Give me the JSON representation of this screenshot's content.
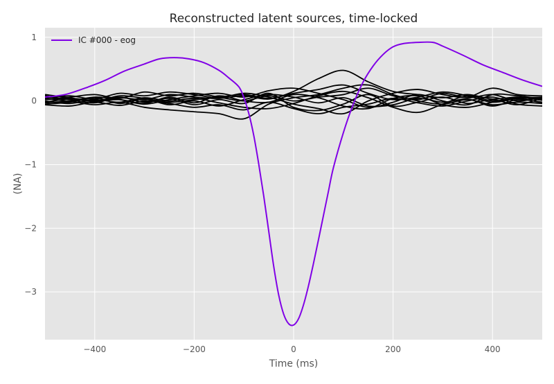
{
  "chart_data": {
    "type": "line",
    "title": "Reconstructed latent sources, time-locked",
    "xlabel": "Time (ms)",
    "ylabel": "(NA)",
    "xlim": [
      -500,
      500
    ],
    "ylim": [
      -3.75,
      1.15
    ],
    "xticks": [
      -400,
      -200,
      0,
      200,
      400
    ],
    "xtick_labels": [
      "−400",
      "−200",
      "0",
      "200",
      "400"
    ],
    "yticks": [
      1,
      0,
      -1,
      -2,
      -3
    ],
    "ytick_labels": [
      "1",
      "0",
      "−1",
      "−2",
      "−3"
    ],
    "grid": true,
    "legend_position": "top-left",
    "background_color": "#e5e5e5",
    "series": [
      {
        "name": "IC #000 - eog",
        "color": "#8000e6",
        "highlight": true,
        "x": [
          -500,
          -460,
          -420,
          -380,
          -340,
          -300,
          -270,
          -240,
          -210,
          -180,
          -150,
          -130,
          -110,
          -100,
          -90,
          -80,
          -70,
          -60,
          -50,
          -40,
          -30,
          -20,
          -10,
          0,
          10,
          20,
          30,
          40,
          50,
          60,
          70,
          80,
          100,
          120,
          140,
          160,
          180,
          200,
          220,
          250,
          280,
          300,
          340,
          380,
          420,
          460,
          500
        ],
        "y": [
          0.06,
          0.1,
          0.2,
          0.32,
          0.47,
          0.58,
          0.66,
          0.68,
          0.66,
          0.6,
          0.48,
          0.36,
          0.22,
          0.05,
          -0.2,
          -0.55,
          -1.0,
          -1.5,
          -2.05,
          -2.6,
          -3.05,
          -3.35,
          -3.5,
          -3.52,
          -3.42,
          -3.2,
          -2.9,
          -2.55,
          -2.18,
          -1.8,
          -1.42,
          -1.05,
          -0.5,
          -0.05,
          0.3,
          0.55,
          0.73,
          0.85,
          0.9,
          0.92,
          0.92,
          0.86,
          0.72,
          0.57,
          0.45,
          0.33,
          0.23
        ]
      },
      {
        "name": "",
        "color": "#000000",
        "x": [
          -500,
          -450,
          -400,
          -350,
          -300,
          -250,
          -200,
          -150,
          -100,
          -50,
          0,
          50,
          100,
          150,
          200,
          250,
          300,
          350,
          400,
          450,
          500
        ],
        "y": [
          0.02,
          0.04,
          0.01,
          0.05,
          0.02,
          0.1,
          0.06,
          0.04,
          0.08,
          0.03,
          0.15,
          0.35,
          0.48,
          0.3,
          0.15,
          0.1,
          0.05,
          0.1,
          0.03,
          0.06,
          0.02
        ]
      },
      {
        "name": "",
        "color": "#000000",
        "x": [
          -500,
          -450,
          -400,
          -350,
          -300,
          -250,
          -200,
          -150,
          -100,
          -50,
          0,
          50,
          100,
          150,
          200,
          250,
          300,
          350,
          400,
          450,
          500
        ],
        "y": [
          -0.03,
          -0.01,
          -0.06,
          -0.02,
          -0.1,
          -0.14,
          -0.17,
          -0.2,
          -0.28,
          -0.05,
          0.05,
          0.1,
          0.2,
          0.25,
          0.1,
          0.0,
          -0.05,
          0.02,
          -0.06,
          -0.02,
          -0.04
        ]
      },
      {
        "name": "",
        "color": "#000000",
        "x": [
          -500,
          -450,
          -400,
          -350,
          -300,
          -250,
          -200,
          -150,
          -100,
          -50,
          0,
          50,
          100,
          150,
          200,
          250,
          300,
          350,
          400,
          450,
          500
        ],
        "y": [
          0.05,
          0.08,
          0.03,
          0.12,
          0.08,
          0.14,
          0.1,
          0.05,
          0.12,
          0.06,
          -0.05,
          -0.12,
          -0.2,
          0.0,
          0.12,
          0.18,
          0.1,
          0.06,
          0.2,
          0.1,
          0.08
        ]
      },
      {
        "name": "",
        "color": "#000000",
        "x": [
          -500,
          -450,
          -400,
          -350,
          -300,
          -250,
          -200,
          -150,
          -100,
          -50,
          0,
          50,
          100,
          150,
          200,
          250,
          300,
          350,
          400,
          450,
          500
        ],
        "y": [
          -0.05,
          -0.02,
          0.05,
          -0.04,
          0.03,
          -0.06,
          0.0,
          -0.08,
          0.02,
          0.1,
          0.06,
          -0.03,
          0.05,
          -0.08,
          -0.06,
          0.04,
          -0.02,
          0.03,
          -0.08,
          0.02,
          -0.02
        ]
      },
      {
        "name": "",
        "color": "#000000",
        "x": [
          -500,
          -450,
          -400,
          -350,
          -300,
          -250,
          -200,
          -150,
          -100,
          -50,
          0,
          50,
          100,
          150,
          200,
          250,
          300,
          350,
          400,
          450,
          500
        ],
        "y": [
          0.08,
          0.02,
          -0.03,
          0.06,
          -0.02,
          0.04,
          -0.06,
          0.02,
          -0.04,
          0.12,
          -0.1,
          -0.15,
          -0.05,
          0.1,
          -0.08,
          -0.02,
          0.06,
          -0.04,
          0.02,
          -0.06,
          0.05
        ]
      },
      {
        "name": "",
        "color": "#000000",
        "x": [
          -500,
          -450,
          -400,
          -350,
          -300,
          -250,
          -200,
          -150,
          -100,
          -50,
          0,
          50,
          100,
          150,
          200,
          250,
          300,
          350,
          400,
          450,
          500
        ],
        "y": [
          0.0,
          -0.04,
          0.02,
          -0.02,
          0.05,
          0.0,
          0.04,
          -0.03,
          -0.1,
          -0.12,
          -0.04,
          0.08,
          0.15,
          0.05,
          -0.1,
          -0.18,
          -0.05,
          0.08,
          0.0,
          0.04,
          -0.03
        ]
      },
      {
        "name": "",
        "color": "#000000",
        "x": [
          -500,
          -450,
          -400,
          -350,
          -300,
          -250,
          -200,
          -150,
          -100,
          -50,
          0,
          50,
          100,
          150,
          200,
          250,
          300,
          350,
          400,
          450,
          500
        ],
        "y": [
          -0.02,
          0.03,
          0.0,
          0.02,
          -0.04,
          0.06,
          -0.03,
          0.08,
          0.0,
          -0.02,
          0.1,
          0.05,
          -0.08,
          -0.12,
          0.04,
          0.08,
          -0.06,
          -0.1,
          -0.02,
          0.05,
          0.01
        ]
      },
      {
        "name": "",
        "color": "#000000",
        "x": [
          -500,
          -450,
          -400,
          -350,
          -300,
          -250,
          -200,
          -150,
          -100,
          -50,
          0,
          50,
          100,
          150,
          200,
          250,
          300,
          350,
          400,
          450,
          500
        ],
        "y": [
          0.03,
          0.06,
          0.1,
          0.04,
          0.14,
          0.08,
          0.12,
          0.06,
          0.0,
          0.08,
          0.0,
          0.06,
          0.1,
          0.2,
          0.08,
          0.02,
          0.12,
          0.05,
          0.1,
          0.0,
          0.06
        ]
      },
      {
        "name": "",
        "color": "#000000",
        "x": [
          -500,
          -450,
          -400,
          -350,
          -300,
          -250,
          -200,
          -150,
          -100,
          -50,
          0,
          50,
          100,
          150,
          200,
          250,
          300,
          350,
          400,
          450,
          500
        ],
        "y": [
          -0.06,
          -0.08,
          -0.02,
          -0.07,
          0.0,
          -0.04,
          -0.1,
          -0.06,
          -0.14,
          -0.02,
          -0.12,
          -0.2,
          -0.1,
          -0.05,
          0.04,
          -0.03,
          -0.08,
          0.0,
          0.06,
          -0.05,
          -0.08
        ]
      },
      {
        "name": "",
        "color": "#000000",
        "x": [
          -500,
          -450,
          -400,
          -350,
          -300,
          -250,
          -200,
          -150,
          -100,
          -50,
          0,
          50,
          100,
          150,
          200,
          250,
          300,
          350,
          400,
          450,
          500
        ],
        "y": [
          0.04,
          0.0,
          0.06,
          0.02,
          -0.05,
          0.02,
          0.08,
          0.12,
          0.06,
          0.16,
          0.2,
          0.12,
          0.02,
          -0.1,
          -0.02,
          0.1,
          0.0,
          -0.06,
          0.1,
          0.08,
          0.03
        ]
      },
      {
        "name": "",
        "color": "#000000",
        "x": [
          -500,
          -450,
          -400,
          -350,
          -300,
          -250,
          -200,
          -150,
          -100,
          -50,
          0,
          50,
          100,
          150,
          200,
          250,
          300,
          350,
          400,
          450,
          500
        ],
        "y": [
          0.1,
          0.05,
          -0.01,
          0.08,
          0.04,
          -0.02,
          0.02,
          0.06,
          0.1,
          0.04,
          0.12,
          0.18,
          0.25,
          0.12,
          0.02,
          0.06,
          0.14,
          0.08,
          -0.02,
          0.04,
          0.06
        ]
      }
    ]
  }
}
